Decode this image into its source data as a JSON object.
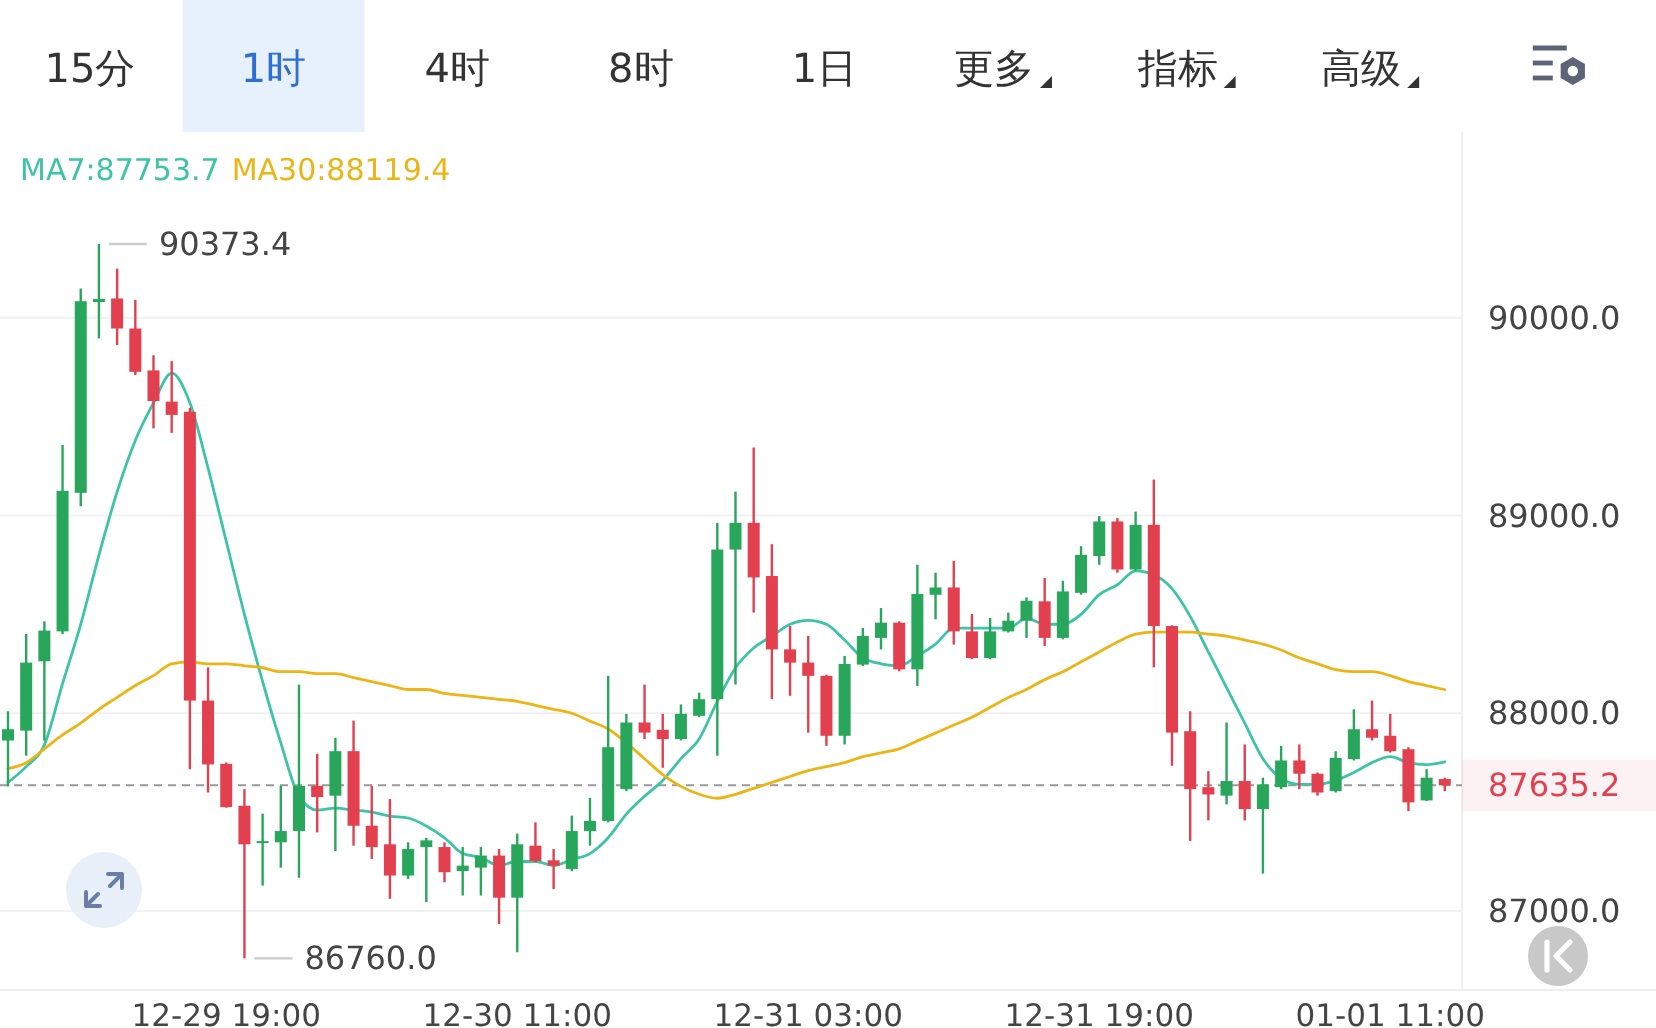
{
  "chart_data": {
    "type": "candlestick",
    "categories": [
      null,
      null,
      null,
      null,
      null,
      null,
      null,
      null,
      null,
      null,
      null,
      null,
      "12-29 19:00",
      null,
      null,
      null,
      null,
      null,
      null,
      null,
      null,
      null,
      null,
      null,
      null,
      null,
      null,
      null,
      "12-30 11:00",
      null,
      null,
      null,
      null,
      null,
      null,
      null,
      null,
      null,
      null,
      null,
      null,
      null,
      null,
      null,
      "12-31 03:00",
      null,
      null,
      null,
      null,
      null,
      null,
      null,
      null,
      null,
      null,
      null,
      null,
      null,
      null,
      null,
      "12-31 19:00",
      null,
      null,
      null,
      null,
      null,
      null,
      null,
      null,
      null,
      null,
      null,
      null,
      null,
      null,
      null,
      "01-01 11:00",
      null,
      null,
      null
    ],
    "ohlc": [
      [
        87862,
        88010,
        87630,
        87919
      ],
      [
        87912,
        88401,
        87785,
        88256
      ],
      [
        88263,
        88465,
        87862,
        88418
      ],
      [
        88414,
        89357,
        88400,
        89125
      ],
      [
        89115,
        90148,
        89047,
        90084
      ],
      [
        90080,
        90373.4,
        89896,
        90095
      ],
      [
        90098,
        90249,
        89862,
        89946
      ],
      [
        89946,
        90091,
        89711,
        89727
      ],
      [
        89734,
        89811,
        89441,
        89579
      ],
      [
        89576,
        89781,
        89418,
        89509
      ],
      [
        89525,
        89545,
        87717,
        88064
      ],
      [
        88064,
        88232,
        87599,
        87741
      ],
      [
        87744,
        87751,
        87522,
        87525
      ],
      [
        87532,
        87616,
        86760.0,
        87337
      ],
      [
        87343,
        87492,
        87128,
        87353
      ],
      [
        87347,
        87633,
        87219,
        87404
      ],
      [
        87404,
        88145,
        87168,
        87633
      ],
      [
        87633,
        87795,
        87397,
        87576
      ],
      [
        87583,
        87876,
        87303,
        87808
      ],
      [
        87808,
        87963,
        87330,
        87431
      ],
      [
        87431,
        87633,
        87263,
        87323
      ],
      [
        87337,
        87566,
        87061,
        87179
      ],
      [
        87179,
        87347,
        87162,
        87313
      ],
      [
        87323,
        87370,
        87044,
        87357
      ],
      [
        87323,
        87347,
        87145,
        87196
      ],
      [
        87202,
        87323,
        87078,
        87229
      ],
      [
        87219,
        87323,
        87078,
        87280
      ],
      [
        87280,
        87313,
        86933,
        87067
      ],
      [
        87067,
        87391,
        86791,
        87337
      ],
      [
        87330,
        87448,
        87246,
        87253
      ],
      [
        87256,
        87313,
        87111,
        87229
      ],
      [
        87212,
        87482,
        87202,
        87404
      ],
      [
        87404,
        87572,
        87330,
        87455
      ],
      [
        87455,
        88189,
        87448,
        87828
      ],
      [
        87616,
        87997,
        87606,
        87953
      ],
      [
        87953,
        88145,
        87869,
        87902
      ],
      [
        87916,
        87997,
        87724,
        87869
      ],
      [
        87869,
        88044,
        87862,
        87997
      ],
      [
        87987,
        88104,
        87980,
        88071
      ],
      [
        88071,
        88963,
        87785,
        88828
      ],
      [
        88828,
        89121,
        88145,
        88963
      ],
      [
        88963,
        89344,
        88509,
        88687
      ],
      [
        88694,
        88855,
        88071,
        88323
      ],
      [
        88323,
        88441,
        88088,
        88256
      ],
      [
        88256,
        88391,
        87902,
        88189
      ],
      [
        88189,
        88195,
        87835,
        87886
      ],
      [
        87886,
        88290,
        87842,
        88249
      ],
      [
        88246,
        88431,
        88239,
        88391
      ],
      [
        88381,
        88532,
        88323,
        88458
      ],
      [
        88458,
        88465,
        88212,
        88222
      ],
      [
        88222,
        88751,
        88138,
        88603
      ],
      [
        88599,
        88711,
        88475,
        88636
      ],
      [
        88636,
        88771,
        88347,
        88414
      ],
      [
        88414,
        88502,
        88273,
        88279
      ],
      [
        88279,
        88482,
        88273,
        88414
      ],
      [
        88414,
        88509,
        88408,
        88468
      ],
      [
        88468,
        88586,
        88381,
        88569
      ],
      [
        88566,
        88684,
        88340,
        88381
      ],
      [
        88381,
        88670,
        88374,
        88616
      ],
      [
        88609,
        88845,
        88600,
        88801
      ],
      [
        88795,
        88997,
        88751,
        88970
      ],
      [
        88970,
        88987,
        88711,
        88727
      ],
      [
        88727,
        89020,
        88721,
        88953
      ],
      [
        88953,
        89182,
        88232,
        88441
      ],
      [
        88441,
        88445,
        87734,
        87902
      ],
      [
        87909,
        88010,
        87354,
        87616
      ],
      [
        87626,
        87707,
        87458,
        87589
      ],
      [
        87583,
        87953,
        87539,
        87657
      ],
      [
        87657,
        87842,
        87458,
        87515
      ],
      [
        87515,
        87674,
        87189,
        87640
      ],
      [
        87626,
        87835,
        87616,
        87761
      ],
      [
        87761,
        87842,
        87616,
        87694
      ],
      [
        87694,
        87700,
        87583,
        87599
      ],
      [
        87606,
        87808,
        87599,
        87774
      ],
      [
        87768,
        88020,
        87761,
        87919
      ],
      [
        87919,
        88064,
        87862,
        87876
      ],
      [
        87886,
        87997,
        87801,
        87808
      ],
      [
        87818,
        87828,
        87505,
        87549
      ],
      [
        87559,
        87717,
        87556,
        87674
      ],
      [
        87667,
        87674,
        87606,
        87635.2
      ]
    ],
    "colors": [
      "#28a65c",
      "#28a65c",
      "#28a65c",
      "#28a65c",
      "#28a65c",
      "#28a65c",
      "#e2404f",
      "#e2404f",
      "#e2404f",
      "#e2404f",
      "#e2404f",
      "#e2404f",
      "#e2404f",
      "#e2404f",
      "#28a65c",
      "#28a65c",
      "#28a65c",
      "#e2404f",
      "#28a65c",
      "#e2404f",
      "#e2404f",
      "#e2404f",
      "#28a65c",
      "#28a65c",
      "#e2404f",
      "#28a65c",
      "#28a65c",
      "#e2404f",
      "#28a65c",
      "#e2404f",
      "#e2404f",
      "#28a65c",
      "#28a65c",
      "#28a65c",
      "#28a65c",
      "#e2404f",
      "#e2404f",
      "#28a65c",
      "#28a65c",
      "#28a65c",
      "#28a65c",
      "#e2404f",
      "#e2404f",
      "#e2404f",
      "#e2404f",
      "#e2404f",
      "#28a65c",
      "#28a65c",
      "#28a65c",
      "#e2404f",
      "#28a65c",
      "#28a65c",
      "#e2404f",
      "#e2404f",
      "#28a65c",
      "#28a65c",
      "#28a65c",
      "#e2404f",
      "#28a65c",
      "#28a65c",
      "#28a65c",
      "#e2404f",
      "#28a65c",
      "#e2404f",
      "#e2404f",
      "#e2404f",
      "#e2404f",
      "#28a65c",
      "#e2404f",
      "#28a65c",
      "#28a65c",
      "#e2404f",
      "#e2404f",
      "#28a65c",
      "#28a65c",
      "#e2404f",
      "#e2404f",
      "#e2404f",
      "#28a65c",
      "#e2404f"
    ],
    "series": [
      {
        "name": "MA7:87753.7",
        "type": "line",
        "color": "#3dc4a6",
        "values": [
          87650,
          87730,
          87840,
          88150,
          88450,
          88800,
          89120,
          89380,
          89570,
          89720,
          89570,
          89240,
          88870,
          88500,
          88160,
          87850,
          87580,
          87510,
          87520,
          87510,
          87500,
          87480,
          87470,
          87430,
          87370,
          87290,
          87270,
          87230,
          87250,
          87250,
          87230,
          87260,
          87290,
          87370,
          87490,
          87580,
          87660,
          87770,
          87870,
          88060,
          88230,
          88330,
          88390,
          88450,
          88470,
          88450,
          88370,
          88280,
          88250,
          88240,
          88290,
          88350,
          88430,
          88430,
          88430,
          88430,
          88480,
          88450,
          88450,
          88500,
          88600,
          88650,
          88720,
          88700,
          88630,
          88490,
          88310,
          88130,
          87950,
          87770,
          87670,
          87640,
          87640,
          87660,
          87700,
          87750,
          87780,
          87750,
          87740,
          87753.7
        ]
      },
      {
        "name": "MA30:88119.4",
        "type": "line",
        "color": "#ecb414",
        "values": [
          87720,
          87750,
          87820,
          87890,
          87950,
          88020,
          88080,
          88140,
          88190,
          88250,
          88260,
          88250,
          88250,
          88240,
          88230,
          88210,
          88210,
          88200,
          88200,
          88180,
          88160,
          88140,
          88120,
          88120,
          88100,
          88090,
          88080,
          88070,
          88060,
          88040,
          88020,
          88000,
          87960,
          87920,
          87850,
          87770,
          87690,
          87630,
          87590,
          87570,
          87590,
          87620,
          87650,
          87680,
          87710,
          87730,
          87750,
          87780,
          87800,
          87820,
          87860,
          87900,
          87940,
          87980,
          88030,
          88080,
          88120,
          88170,
          88210,
          88260,
          88310,
          88360,
          88400,
          88410,
          88410,
          88410,
          88400,
          88390,
          88370,
          88350,
          88320,
          88280,
          88250,
          88220,
          88210,
          88210,
          88190,
          88160,
          88140,
          88119.4
        ]
      }
    ],
    "ylim": [
      86600,
      90940
    ],
    "yticks": [
      {
        "value": 87000,
        "label": "87000.0"
      },
      {
        "value": 88000,
        "label": "88000.0"
      },
      {
        "value": 89000,
        "label": "89000.0"
      },
      {
        "value": 90000,
        "label": "90000.0"
      }
    ],
    "grid": "y",
    "legend": "top left",
    "ref_lines": [
      {
        "axis": "y",
        "value": 87635.2,
        "color": "#9a9a9a",
        "line_style": "dashed"
      }
    ],
    "annotations": [
      "15分",
      "1时",
      "4时",
      "8时",
      "1日",
      "更多",
      "指标",
      "高级",
      "90373.4",
      "86760.0",
      "87635.2"
    ]
  }
}
